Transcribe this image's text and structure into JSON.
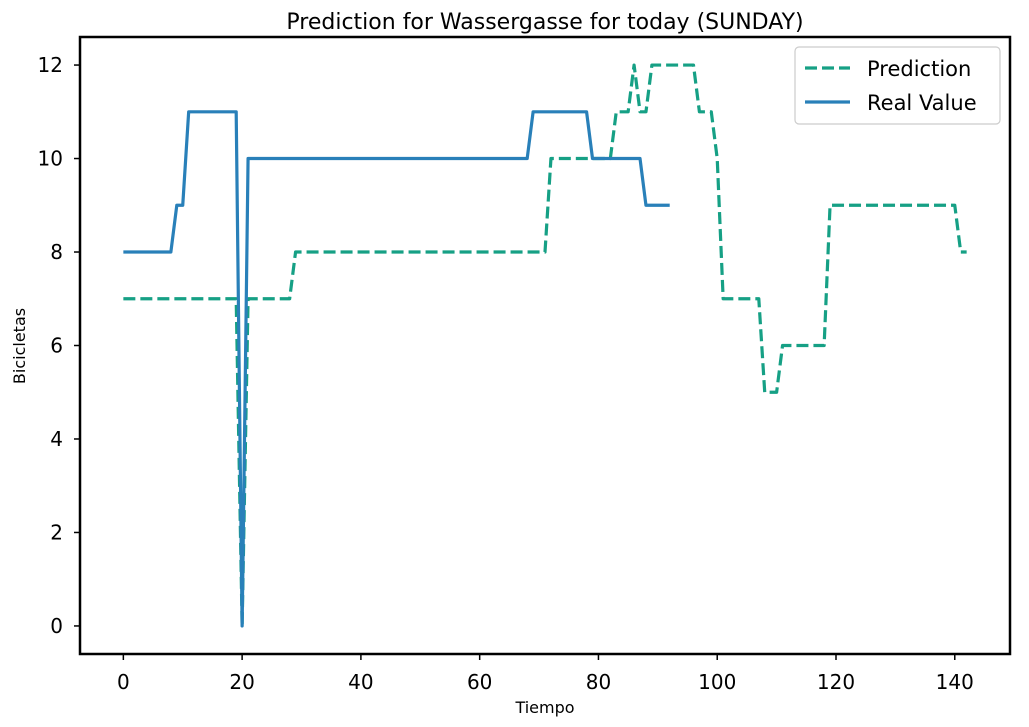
{
  "chart_data": {
    "type": "line",
    "title": "Prediction for Wassergasse for today (SUNDAY)",
    "xlabel": "Tiempo",
    "ylabel": "Bicicletas",
    "xlim": [
      -7.3,
      149.3
    ],
    "ylim": [
      -0.6,
      12.6
    ],
    "xticks": [
      0,
      20,
      40,
      60,
      80,
      100,
      120,
      140
    ],
    "yticks": [
      0,
      2,
      4,
      6,
      8,
      10,
      12
    ],
    "grid": false,
    "legend_position": "top-right",
    "series": [
      {
        "name": "Prediction",
        "color": "#16a085",
        "style": "dashed",
        "x": [
          0,
          1,
          2,
          3,
          4,
          5,
          6,
          7,
          8,
          9,
          10,
          11,
          12,
          13,
          14,
          15,
          16,
          17,
          18,
          19,
          20,
          21,
          22,
          23,
          24,
          25,
          26,
          27,
          28,
          29,
          30,
          31,
          32,
          33,
          34,
          35,
          36,
          37,
          38,
          39,
          40,
          41,
          42,
          43,
          44,
          45,
          46,
          47,
          48,
          49,
          50,
          51,
          52,
          53,
          54,
          55,
          56,
          57,
          58,
          59,
          60,
          61,
          62,
          63,
          64,
          65,
          66,
          67,
          68,
          69,
          70,
          71,
          72,
          73,
          74,
          75,
          76,
          77,
          78,
          79,
          80,
          81,
          82,
          83,
          84,
          85,
          86,
          87,
          88,
          89,
          90,
          91,
          92,
          93,
          94,
          95,
          96,
          97,
          98,
          99,
          100,
          101,
          102,
          103,
          104,
          105,
          106,
          107,
          108,
          109,
          110,
          111,
          112,
          113,
          114,
          115,
          116,
          117,
          118,
          119,
          120,
          121,
          122,
          123,
          124,
          125,
          126,
          127,
          128,
          129,
          130,
          131,
          132,
          133,
          134,
          135,
          136,
          137,
          138,
          139,
          140,
          141,
          142
        ],
        "values": [
          7,
          7,
          7,
          7,
          7,
          7,
          7,
          7,
          7,
          7,
          7,
          7,
          7,
          7,
          7,
          7,
          7,
          7,
          7,
          7,
          0,
          7,
          7,
          7,
          7,
          7,
          7,
          7,
          7,
          8,
          8,
          8,
          8,
          8,
          8,
          8,
          8,
          8,
          8,
          8,
          8,
          8,
          8,
          8,
          8,
          8,
          8,
          8,
          8,
          8,
          8,
          8,
          8,
          8,
          8,
          8,
          8,
          8,
          8,
          8,
          8,
          8,
          8,
          8,
          8,
          8,
          8,
          8,
          8,
          8,
          8,
          8,
          10,
          10,
          10,
          10,
          10,
          10,
          10,
          10,
          10,
          10,
          10,
          11,
          11,
          11,
          12,
          11,
          11,
          12,
          12,
          12,
          12,
          12,
          12,
          12,
          12,
          11,
          11,
          11,
          10,
          7,
          7,
          7,
          7,
          7,
          7,
          7,
          5,
          5,
          5,
          6,
          6,
          6,
          6,
          6,
          6,
          6,
          6,
          9,
          9,
          9,
          9,
          9,
          9,
          9,
          9,
          9,
          9,
          9,
          9,
          9,
          9,
          9,
          9,
          9,
          9,
          9,
          9,
          9,
          9,
          8,
          8
        ]
      },
      {
        "name": "Real Value",
        "color": "#2980b9",
        "style": "solid",
        "x": [
          0,
          1,
          2,
          3,
          4,
          5,
          6,
          7,
          8,
          9,
          10,
          11,
          12,
          13,
          14,
          15,
          16,
          17,
          18,
          19,
          20,
          21,
          22,
          23,
          24,
          25,
          26,
          27,
          28,
          29,
          30,
          31,
          32,
          33,
          34,
          35,
          36,
          37,
          38,
          39,
          40,
          41,
          42,
          43,
          44,
          45,
          46,
          47,
          48,
          49,
          50,
          51,
          52,
          53,
          54,
          55,
          56,
          57,
          58,
          59,
          60,
          61,
          62,
          63,
          64,
          65,
          66,
          67,
          68,
          69,
          70,
          71,
          72,
          73,
          74,
          75,
          76,
          77,
          78,
          79,
          80,
          81,
          82,
          83,
          84,
          85,
          86,
          87,
          88,
          89,
          90,
          91,
          92
        ],
        "values": [
          8,
          8,
          8,
          8,
          8,
          8,
          8,
          8,
          8,
          9,
          9,
          11,
          11,
          11,
          11,
          11,
          11,
          11,
          11,
          11,
          0,
          10,
          10,
          10,
          10,
          10,
          10,
          10,
          10,
          10,
          10,
          10,
          10,
          10,
          10,
          10,
          10,
          10,
          10,
          10,
          10,
          10,
          10,
          10,
          10,
          10,
          10,
          10,
          10,
          10,
          10,
          10,
          10,
          10,
          10,
          10,
          10,
          10,
          10,
          10,
          10,
          10,
          10,
          10,
          10,
          10,
          10,
          10,
          10,
          11,
          11,
          11,
          11,
          11,
          11,
          11,
          11,
          11,
          11,
          10,
          10,
          10,
          10,
          10,
          10,
          10,
          10,
          10,
          9,
          9,
          9,
          9,
          9
        ]
      }
    ]
  }
}
